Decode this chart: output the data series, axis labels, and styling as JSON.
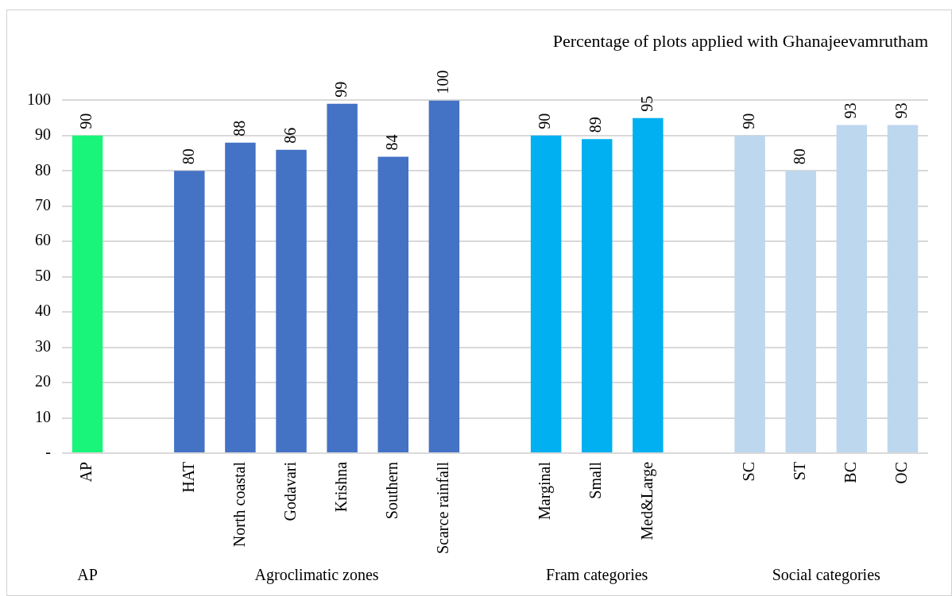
{
  "chart_data": {
    "type": "bar",
    "title": "Percentage of plots applied with Ghanajeevamrutham",
    "categories": [
      "AP",
      null,
      "HAT",
      "North coastal",
      "Godavari",
      "Krishna",
      "Southern",
      "Scarce rainfall",
      null,
      "Marginal",
      "Small",
      "Med&Large",
      null,
      "SC",
      "ST",
      "BC",
      "OC"
    ],
    "values": [
      90,
      null,
      80,
      88,
      86,
      99,
      84,
      100,
      null,
      90,
      89,
      95,
      null,
      90,
      80,
      93,
      93
    ],
    "colors": [
      "#19f57a",
      null,
      "#4472c4",
      "#4472c4",
      "#4472c4",
      "#4472c4",
      "#4472c4",
      "#4472c4",
      null,
      "#00b0f0",
      "#00b0f0",
      "#00b0f0",
      null,
      "#bdd7ee",
      "#bdd7ee",
      "#bdd7ee",
      "#bdd7ee"
    ],
    "ylim": [
      0,
      100
    ],
    "yticks": [
      {
        "value": 0,
        "label": "-"
      },
      10,
      20,
      30,
      40,
      50,
      60,
      70,
      80,
      90,
      100
    ],
    "grid": "y",
    "data_labels": true,
    "annotations": [
      "AP",
      "Agroclimatic zones",
      "Fram categories",
      "Social categories"
    ]
  }
}
